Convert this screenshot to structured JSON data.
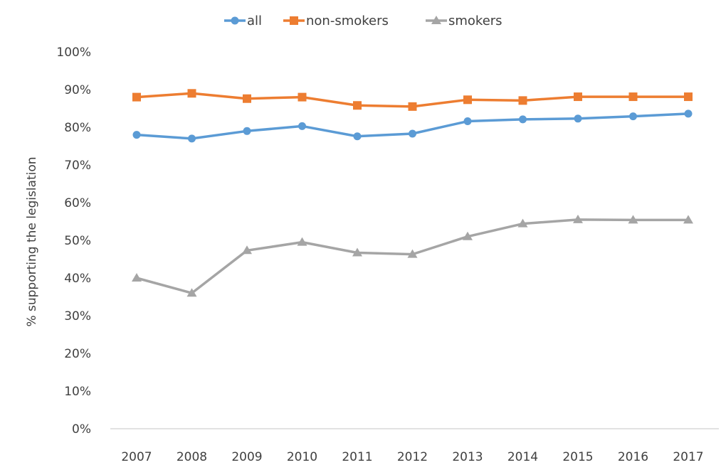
{
  "chart_data": {
    "type": "line",
    "title": "",
    "xlabel": "",
    "ylabel": "% supporting the legislation",
    "categories": [
      "2007",
      "2008",
      "2009",
      "2010",
      "2011",
      "2012",
      "2013",
      "2014",
      "2015",
      "2016",
      "2017"
    ],
    "ylim": [
      0,
      100
    ],
    "yticks": [
      "0%",
      "10%",
      "20%",
      "30%",
      "40%",
      "50%",
      "60%",
      "70%",
      "80%",
      "90%",
      "100%"
    ],
    "grid": false,
    "legend_position": "top",
    "series": [
      {
        "name": "all",
        "color": "#5b9bd5",
        "marker": "circle",
        "values": [
          78,
          77,
          79,
          80.3,
          77.6,
          78.3,
          81.6,
          82.1,
          82.3,
          82.9,
          83.6
        ]
      },
      {
        "name": "non-smokers",
        "color": "#ed7d31",
        "marker": "square",
        "values": [
          88,
          89,
          87.6,
          88,
          85.8,
          85.5,
          87.3,
          87.1,
          88.1,
          88.1,
          88.1
        ]
      },
      {
        "name": "smokers",
        "color": "#a5a5a5",
        "marker": "triangle",
        "values": [
          40,
          36,
          47.3,
          49.5,
          46.7,
          46.3,
          51,
          54.4,
          55.5,
          55.4,
          55.4
        ]
      }
    ]
  }
}
